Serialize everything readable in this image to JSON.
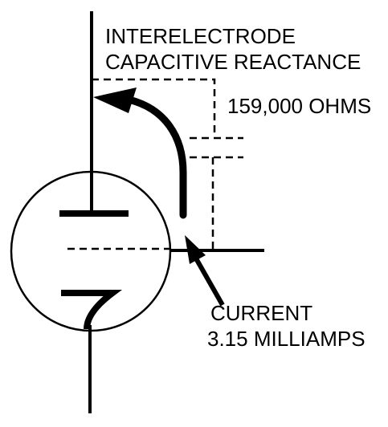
{
  "diagram": {
    "reactance_label": {
      "line1": "INTERELECTRODE",
      "line2": "CAPACITIVE REACTANCE"
    },
    "resistance_label": "159,000 OHMS",
    "current_label": {
      "line1": "CURRENT",
      "line2": "3.15 MILLIAMPS"
    }
  },
  "colors": {
    "ink": "#000000",
    "background": "#ffffff"
  }
}
